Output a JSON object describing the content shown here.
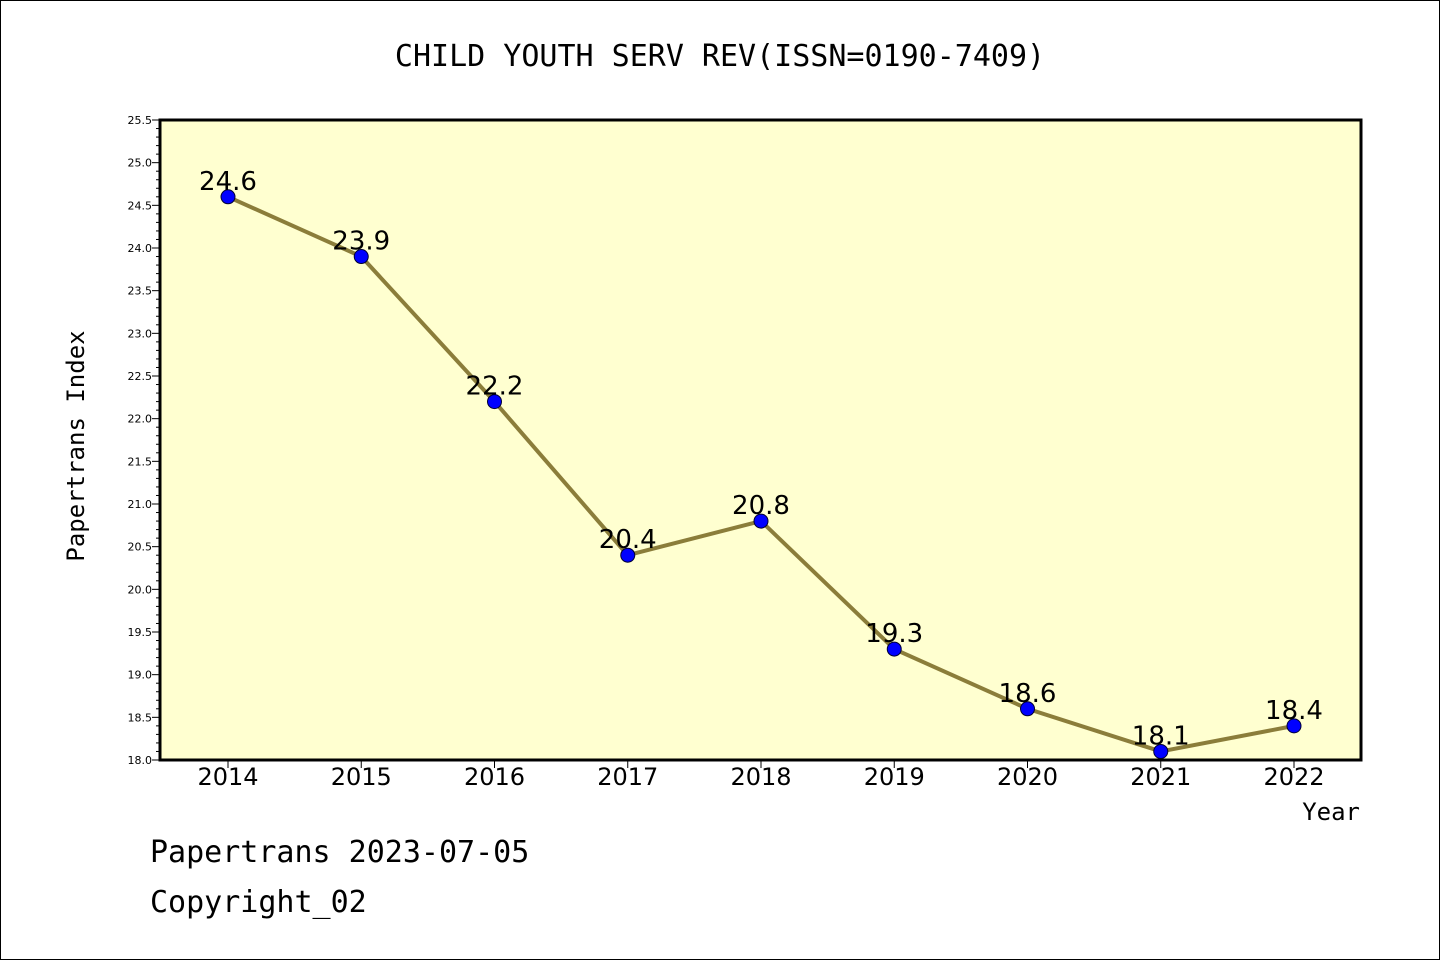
{
  "chart_data": {
    "type": "line",
    "title": "CHILD YOUTH SERV REV(ISSN=0190-7409)",
    "xlabel": "Year",
    "ylabel": "Papertrans Index",
    "x": [
      "2014",
      "2015",
      "2016",
      "2017",
      "2018",
      "2019",
      "2020",
      "2021",
      "2022"
    ],
    "values": [
      24.6,
      23.9,
      22.2,
      20.4,
      20.8,
      19.3,
      18.6,
      18.1,
      18.4
    ],
    "data_labels": [
      "24.6",
      "23.9",
      "22.2",
      "20.4",
      "20.8",
      "19.3",
      "18.6",
      "18.1",
      "18.4"
    ],
    "ylim": [
      18.0,
      25.5
    ],
    "yticks": [
      "18.0",
      "18.5",
      "19.0",
      "19.5",
      "20.0",
      "20.5",
      "21.0",
      "21.5",
      "22.0",
      "22.5",
      "23.0",
      "23.5",
      "24.0",
      "24.5",
      "25.0",
      "25.5"
    ],
    "grid": false,
    "colors": {
      "line": "#8b7d3a",
      "marker": "#0000ff",
      "plot_background": "#ffffd0"
    }
  },
  "footer": {
    "line1": "Papertrans 2023-07-05",
    "line2": "Copyright_02"
  }
}
